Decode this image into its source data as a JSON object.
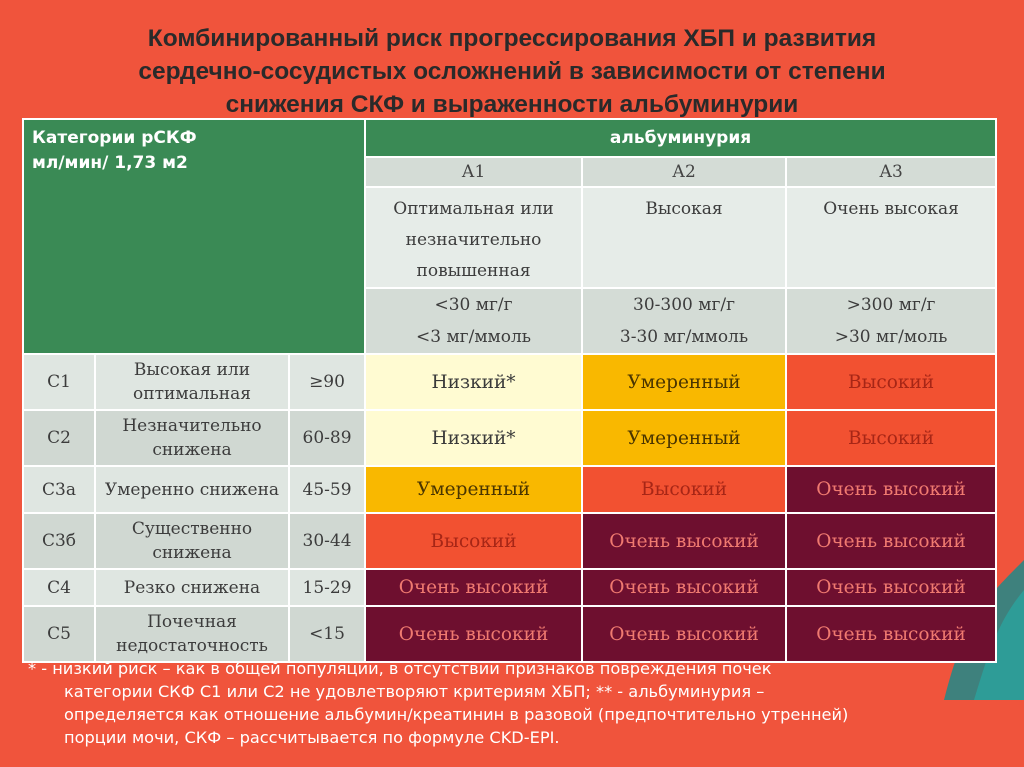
{
  "title": {
    "lines": [
      "Комбинированный риск прогрессирования ХБП и развития",
      "сердечно-сосудистых осложнений в зависимости от степени",
      "снижения СКФ и выраженности альбуминурии"
    ]
  },
  "table": {
    "gfr_header": [
      "Категории рСКФ",
      "мл/мин/ 1,73 м2"
    ],
    "albumin_header": "альбуминурия",
    "albumin_categories": [
      {
        "code": "А1",
        "desc": [
          "Оптимальная или",
          "незначительно",
          "повышенная"
        ],
        "range": [
          "<30 мг/г",
          "<3 мг/ммоль"
        ]
      },
      {
        "code": "А2",
        "desc": [
          "Высокая"
        ],
        "range": [
          "30-300 мг/г",
          "3-30 мг/ммоль"
        ]
      },
      {
        "code": "А3",
        "desc": [
          "Очень высокая"
        ],
        "range": [
          ">300 мг/г",
          ">30 мг/моль"
        ]
      }
    ],
    "rows": [
      {
        "code": "С1",
        "label": [
          "Высокая или",
          "оптимальная"
        ],
        "value": "≥90",
        "risks": [
          "Низкий*",
          "Умеренный",
          "Высокий"
        ]
      },
      {
        "code": "С2",
        "label": [
          "Незначительно",
          "снижена"
        ],
        "value": "60-89",
        "risks": [
          "Низкий*",
          "Умеренный",
          "Высокий"
        ]
      },
      {
        "code": "С3а",
        "label": [
          "Умеренно снижена"
        ],
        "value": "45-59",
        "risks": [
          "Умеренный",
          "Высокий",
          "Очень высокий"
        ]
      },
      {
        "code": "С3б",
        "label": [
          "Существенно",
          "снижена"
        ],
        "value": "30-44",
        "risks": [
          "Высокий",
          "Очень высокий",
          "Очень высокий"
        ]
      },
      {
        "code": "С4",
        "label": [
          "Резко снижена"
        ],
        "value": "15-29",
        "risks": [
          "Очень высокий",
          "Очень высокий",
          "Очень высокий"
        ]
      },
      {
        "code": "С5",
        "label": [
          "Почечная",
          "недостаточность"
        ],
        "value": "<15",
        "risks": [
          "Очень высокий",
          "Очень высокий",
          "Очень высокий"
        ]
      }
    ]
  },
  "footnote": {
    "lines": [
      "* - низкий риск – как в общей популяции, в отсутствии признаков повреждения почек",
      "категории СКФ С1 или С2 не удовлетворяют критериям ХБП; ** - альбуминурия –",
      "определяется как отношение альбумин/креатинин в разовой (предпочтительно утренней)",
      "порции мочи, СКФ – рассчитывается по формуле CKD-EPI."
    ]
  },
  "colors": {
    "background": "#f0543c",
    "header_green": "#3a8a55",
    "risk_low": "#fffbd2",
    "risk_moderate": "#f9b800",
    "risk_high": "#f25131",
    "risk_very_high": "#6e0f2f"
  }
}
